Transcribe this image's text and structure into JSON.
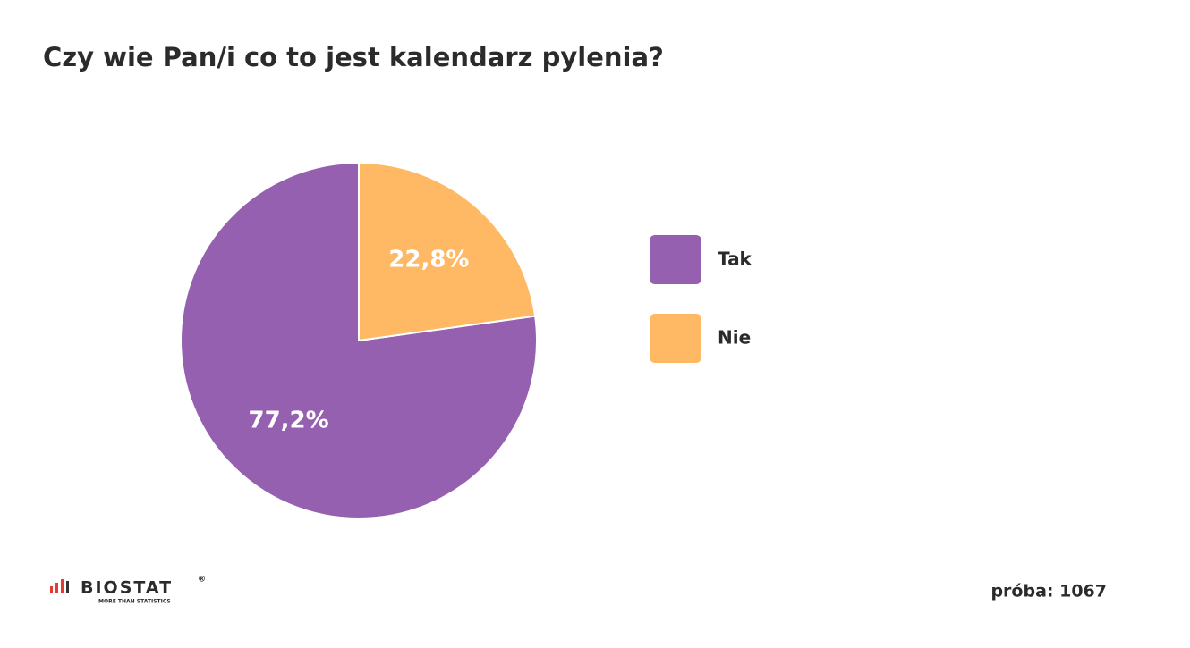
{
  "chart_data": {
    "type": "pie",
    "title": "Czy wie Pan/i co to jest kalendarz pylenia?",
    "categories": [
      "Tak",
      "Nie"
    ],
    "values": [
      77.2,
      22.8
    ],
    "value_labels": [
      "77,2%",
      "22,8%"
    ],
    "colors": [
      "#9560b0",
      "#ffb964"
    ],
    "legend": "right"
  },
  "footer": {
    "sample": "próba: 1067",
    "logo": "BIOSTAT",
    "logo_tagline": "MORE THAN STATISTICS",
    "logo_mark": "®"
  }
}
